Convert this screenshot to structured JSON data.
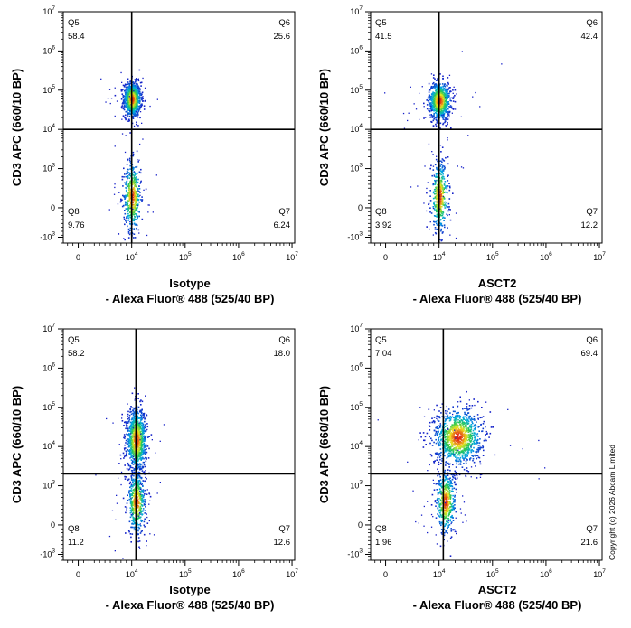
{
  "chart_data": [
    {
      "type": "scatter",
      "ylabel": "CD3 APC (660/10 BP)",
      "xlabel_line1": "Isotype",
      "xlabel_line2": "- Alexa Fluor® 488  (525/40 BP)",
      "x_ticks": [
        "0",
        "10^4",
        "10^5",
        "10^6",
        "10^7"
      ],
      "y_ticks": [
        "-10^3",
        "0",
        "10^3",
        "10^4",
        "10^5",
        "10^6",
        "10^7"
      ],
      "quadrants": [
        {
          "name": "Q5",
          "value": "58.4"
        },
        {
          "name": "Q6",
          "value": "25.6"
        },
        {
          "name": "Q8",
          "value": "9.76"
        },
        {
          "name": "Q7",
          "value": "6.24"
        }
      ],
      "gate_x": 10000,
      "gate_y": 10000,
      "clusters": [
        {
          "x": 10000,
          "y": 60000,
          "count": 900,
          "spread_x": 0.08,
          "spread_y": 0.22
        },
        {
          "x": 10000,
          "y": 300,
          "count": 450,
          "spread_x": 0.08,
          "spread_y": 0.45
        }
      ]
    },
    {
      "type": "scatter",
      "ylabel": "CD3 APC (660/10 BP)",
      "xlabel_line1": "ASCT2",
      "xlabel_line2": "- Alexa Fluor® 488  (525/40 BP)",
      "x_ticks": [
        "0",
        "10^4",
        "10^5",
        "10^6",
        "10^7"
      ],
      "y_ticks": [
        "-10^3",
        "0",
        "10^3",
        "10^4",
        "10^5",
        "10^6",
        "10^7"
      ],
      "quadrants": [
        {
          "name": "Q5",
          "value": "41.5"
        },
        {
          "name": "Q6",
          "value": "42.4"
        },
        {
          "name": "Q8",
          "value": "3.92"
        },
        {
          "name": "Q7",
          "value": "12.2"
        }
      ],
      "gate_x": 10000,
      "gate_y": 10000,
      "clusters": [
        {
          "x": 10000,
          "y": 55000,
          "count": 850,
          "spread_x": 0.1,
          "spread_y": 0.24
        },
        {
          "x": 10000,
          "y": 300,
          "count": 420,
          "spread_x": 0.08,
          "spread_y": 0.45
        }
      ]
    },
    {
      "type": "scatter",
      "ylabel": "CD3 APC (660/10 BP)",
      "xlabel_line1": "Isotype",
      "xlabel_line2": "- Alexa Fluor® 488  (525/40 BP)",
      "x_ticks": [
        "0",
        "10^4",
        "10^5",
        "10^6",
        "10^7"
      ],
      "y_ticks": [
        "-10^3",
        "0",
        "10^3",
        "10^4",
        "10^5",
        "10^6",
        "10^7"
      ],
      "quadrants": [
        {
          "name": "Q5",
          "value": "58.2"
        },
        {
          "name": "Q6",
          "value": "18.0"
        },
        {
          "name": "Q8",
          "value": "11.2"
        },
        {
          "name": "Q7",
          "value": "12.6"
        }
      ],
      "gate_x": 12000,
      "gate_y": 2000,
      "clusters": [
        {
          "x": 12000,
          "y": 15000,
          "count": 1000,
          "spread_x": 0.09,
          "spread_y": 0.4
        },
        {
          "x": 12000,
          "y": 600,
          "count": 450,
          "spread_x": 0.08,
          "spread_y": 0.4
        }
      ]
    },
    {
      "type": "scatter",
      "ylabel": "CD3 APC (660/10 BP)",
      "xlabel_line1": "ASCT2",
      "xlabel_line2": "- Alexa Fluor® 488  (525/40 BP)",
      "x_ticks": [
        "0",
        "10^4",
        "10^5",
        "10^6",
        "10^7"
      ],
      "y_ticks": [
        "-10^3",
        "0",
        "10^3",
        "10^4",
        "10^5",
        "10^6",
        "10^7"
      ],
      "quadrants": [
        {
          "name": "Q5",
          "value": "7.04"
        },
        {
          "name": "Q6",
          "value": "69.4"
        },
        {
          "name": "Q8",
          "value": "1.96"
        },
        {
          "name": "Q7",
          "value": "21.6"
        }
      ],
      "gate_x": 12000,
      "gate_y": 2000,
      "clusters": [
        {
          "x": 22000,
          "y": 18000,
          "count": 1100,
          "spread_x": 0.22,
          "spread_y": 0.35
        },
        {
          "x": 13000,
          "y": 600,
          "count": 450,
          "spread_x": 0.09,
          "spread_y": 0.4
        }
      ]
    }
  ],
  "copyright": "Copyright (c) 2026 Abcam Limited"
}
